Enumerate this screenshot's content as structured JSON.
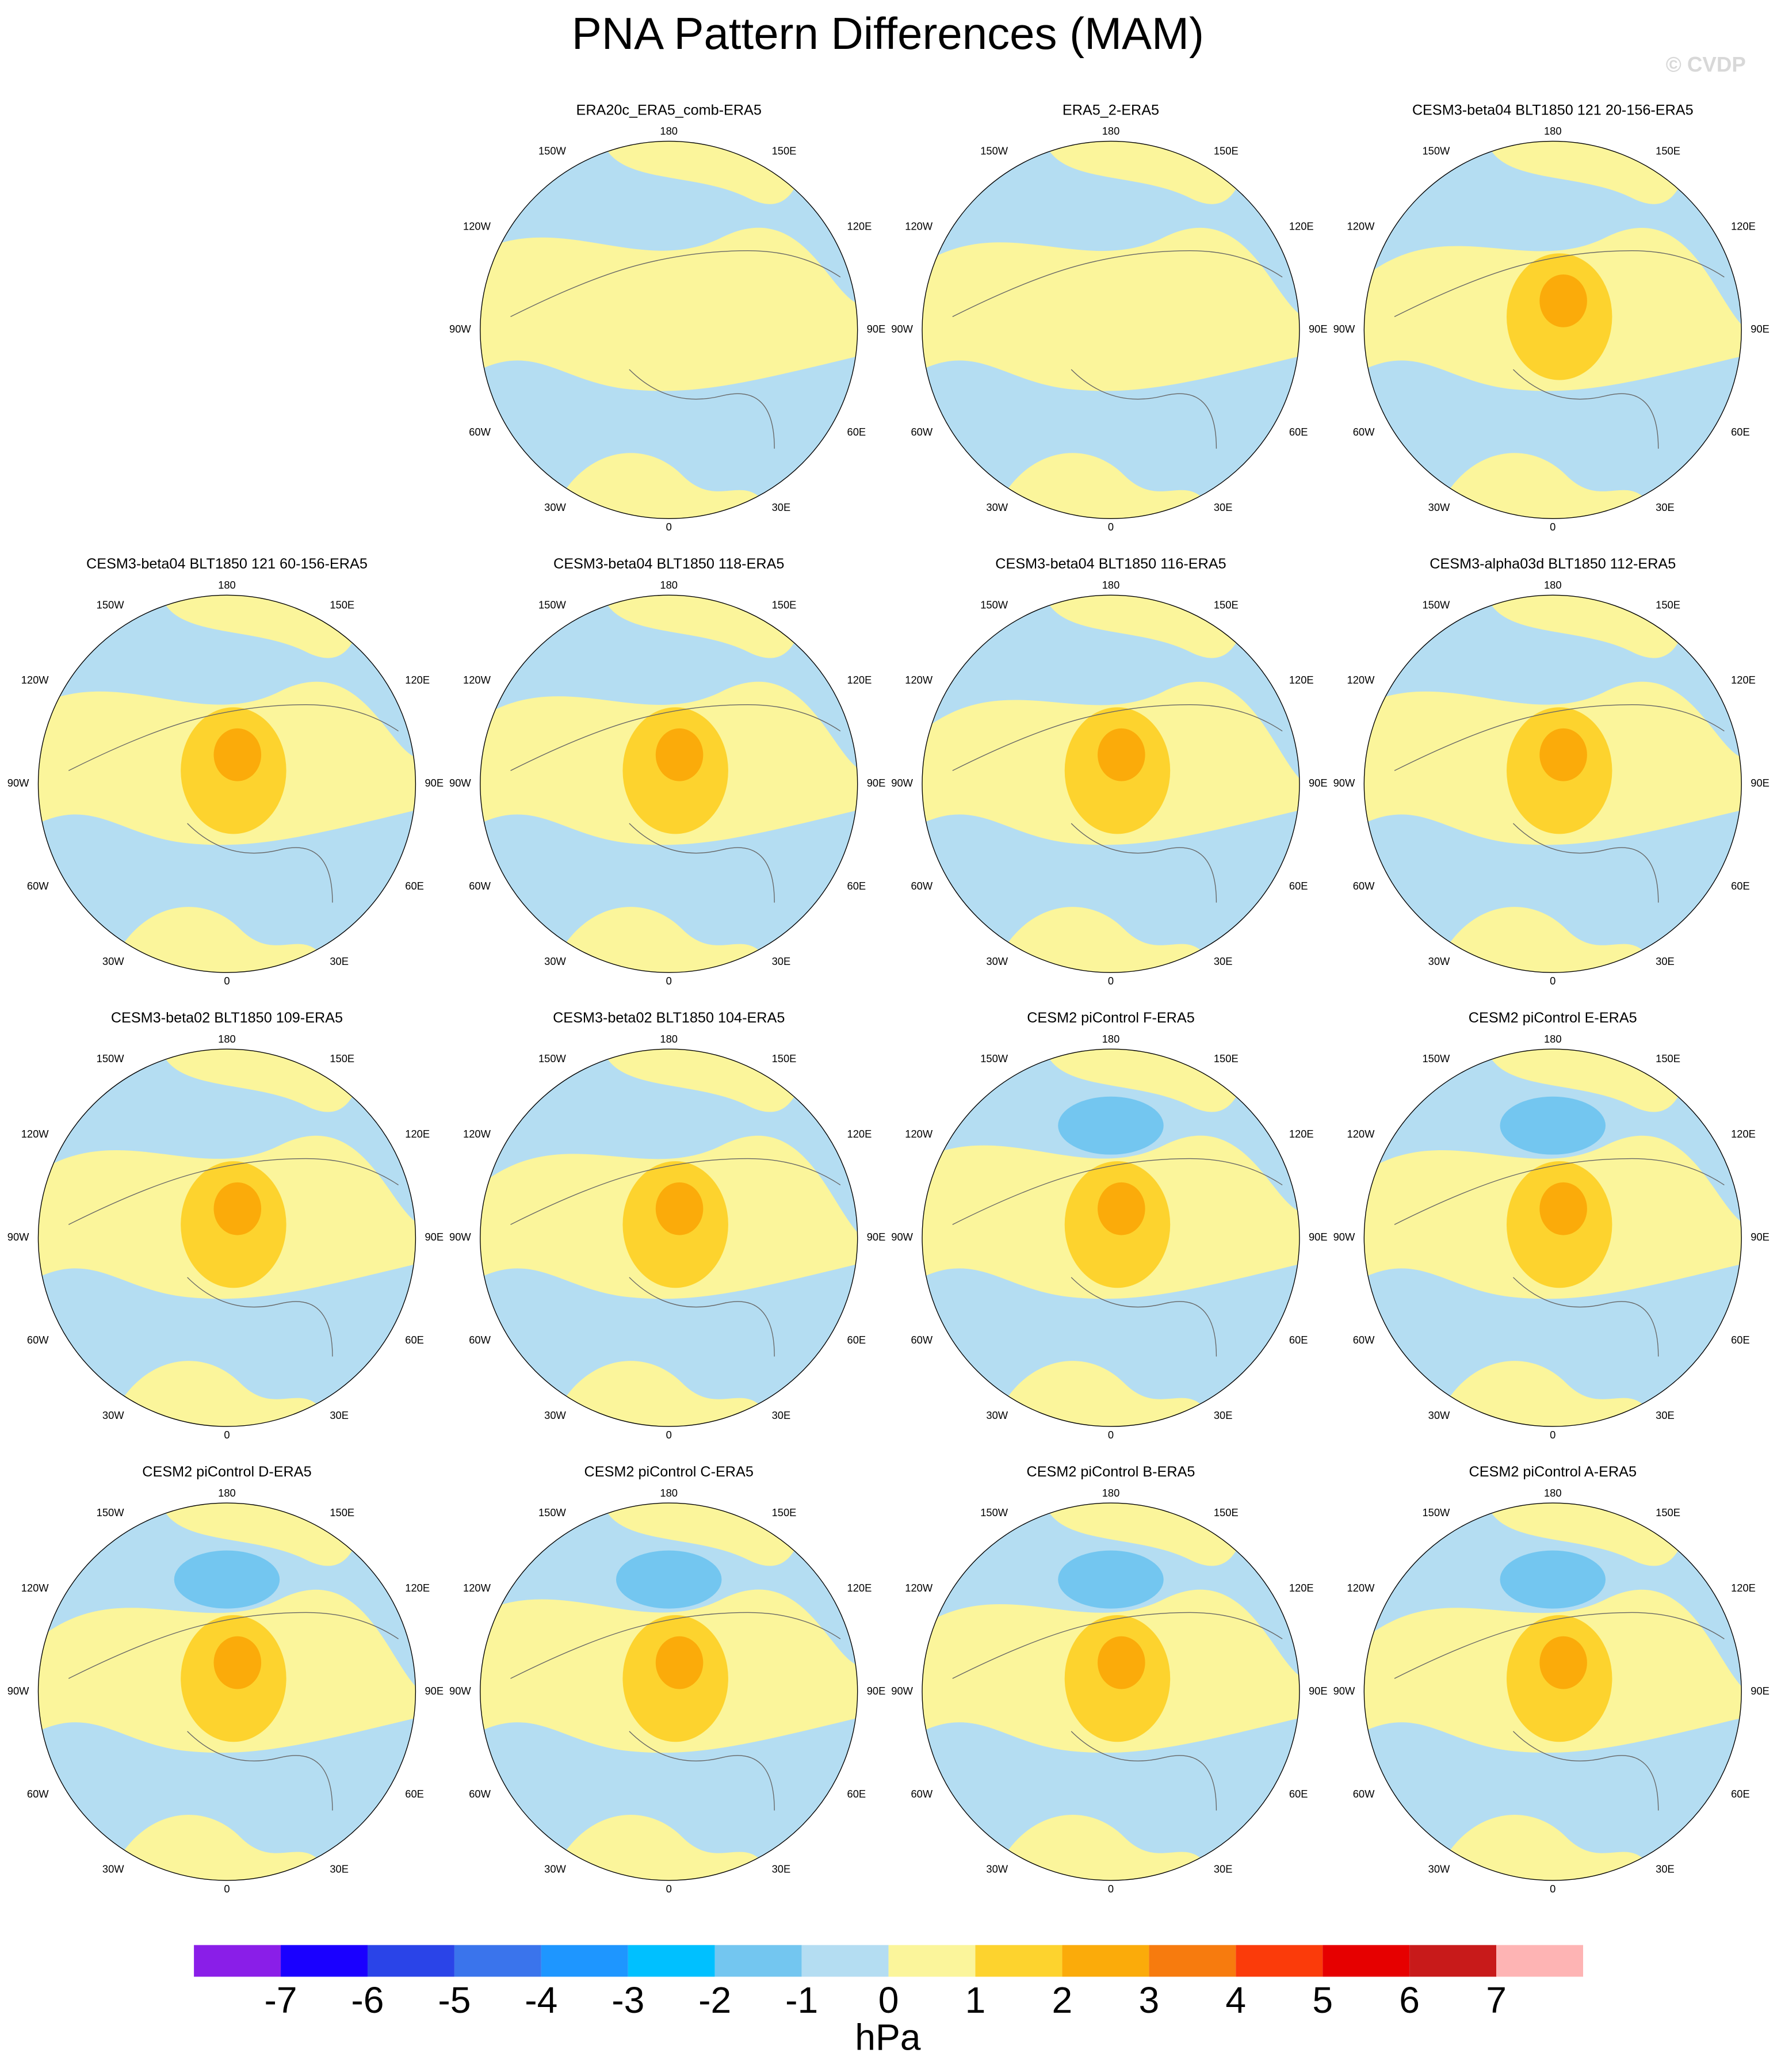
{
  "title": "PNA Pattern Differences (MAM)",
  "watermark": "© CVDP",
  "panels": [
    {
      "title": "ERA20c_ERA5_comb-ERA5"
    },
    {
      "title": "ERA5_2-ERA5"
    },
    {
      "title": "CESM3-beta04 BLT1850 121 20-156-ERA5"
    },
    {
      "title": "CESM3-beta04 BLT1850 121 60-156-ERA5"
    },
    {
      "title": "CESM3-beta04 BLT1850 118-ERA5"
    },
    {
      "title": "CESM3-beta04 BLT1850 116-ERA5"
    },
    {
      "title": "CESM3-alpha03d BLT1850 112-ERA5"
    },
    {
      "title": "CESM3-beta02 BLT1850 109-ERA5"
    },
    {
      "title": "CESM3-beta02 BLT1850 104-ERA5"
    },
    {
      "title": "CESM2 piControl F-ERA5"
    },
    {
      "title": "CESM2 piControl E-ERA5"
    },
    {
      "title": "CESM2 piControl D-ERA5"
    },
    {
      "title": "CESM2 piControl C-ERA5"
    },
    {
      "title": "CESM2 piControl B-ERA5"
    },
    {
      "title": "CESM2 piControl A-ERA5"
    }
  ],
  "lon_labels": [
    "180",
    "150E",
    "120E",
    "90E",
    "60E",
    "30E",
    "0",
    "30W",
    "60W",
    "90W",
    "120W",
    "150W"
  ],
  "colorbar": {
    "ticks": [
      -7,
      -6,
      -5,
      -4,
      -3,
      -2,
      -1,
      0,
      1,
      2,
      3,
      4,
      5,
      6,
      7
    ],
    "colors": [
      "#8a1ee8",
      "#1a00ff",
      "#2a44e8",
      "#3a74ec",
      "#1e96ff",
      "#00c0ff",
      "#73c6f0",
      "#b4ddf2",
      "#fbf59b",
      "#fdd32e",
      "#fbab0a",
      "#f77b0e",
      "#fb3b0a",
      "#e60000",
      "#c81a1a",
      "#feb4b4"
    ],
    "label": "hPa"
  }
}
